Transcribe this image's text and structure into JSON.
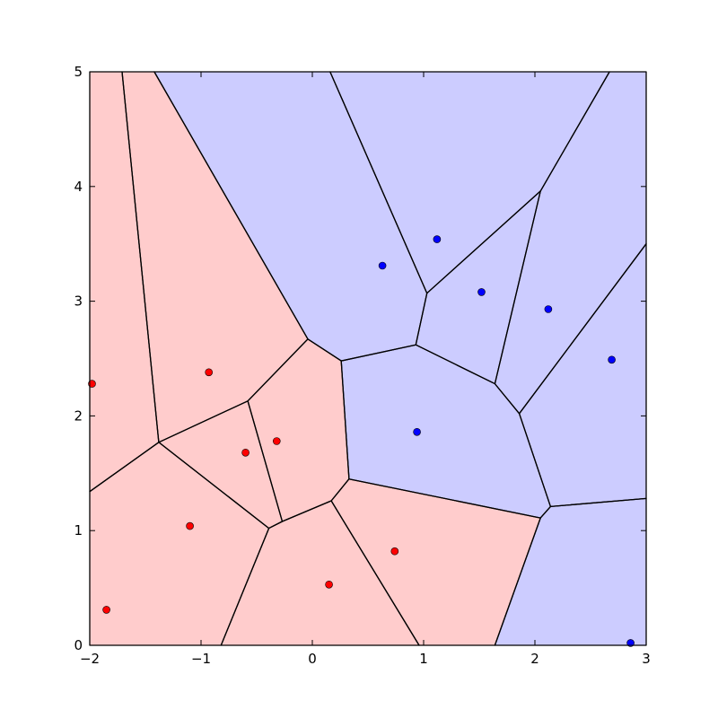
{
  "chart_data": {
    "type": "scatter",
    "title": "",
    "xlabel": "",
    "ylabel": "",
    "xlim": [
      -2,
      3
    ],
    "ylim": [
      0,
      5
    ],
    "xticks": [
      -2,
      -1,
      0,
      1,
      2,
      3
    ],
    "yticks": [
      0,
      1,
      2,
      3,
      4,
      5
    ],
    "grid": false,
    "colors": {
      "red_region": "#ffcccc",
      "blue_region": "#ccccff",
      "red_point": "#ff0000",
      "blue_point": "#0000ff",
      "edge": "#000000"
    },
    "series": [
      {
        "color": "red",
        "points": [
          [
            -1.98,
            2.28
          ],
          [
            -0.93,
            2.38
          ],
          [
            -0.6,
            1.68
          ],
          [
            -0.32,
            1.78
          ],
          [
            -1.1,
            1.04
          ],
          [
            -1.85,
            0.31
          ],
          [
            0.15,
            0.53
          ],
          [
            0.74,
            0.82
          ]
        ]
      },
      {
        "color": "blue",
        "points": [
          [
            0.63,
            3.31
          ],
          [
            1.12,
            3.54
          ],
          [
            1.52,
            3.08
          ],
          [
            2.12,
            2.93
          ],
          [
            2.69,
            2.49
          ],
          [
            0.94,
            1.86
          ],
          [
            2.86,
            0.02
          ]
        ]
      }
    ],
    "regions": [
      {
        "class": "red",
        "vertices": [
          [
            -2,
            5
          ],
          [
            -1.71,
            5
          ],
          [
            -1.38,
            1.77
          ],
          [
            -2,
            1.34
          ]
        ]
      },
      {
        "class": "red",
        "vertices": [
          [
            -1.71,
            5
          ],
          [
            -1.42,
            5
          ],
          [
            -0.04,
            2.67
          ],
          [
            -0.58,
            2.13
          ],
          [
            -1.38,
            1.77
          ]
        ]
      },
      {
        "class": "red",
        "vertices": [
          [
            -2,
            1.34
          ],
          [
            -1.38,
            1.77
          ],
          [
            -0.39,
            1.02
          ],
          [
            -0.82,
            0
          ],
          [
            -2,
            0
          ]
        ]
      },
      {
        "class": "red",
        "vertices": [
          [
            -1.38,
            1.77
          ],
          [
            -0.58,
            2.13
          ],
          [
            -0.27,
            1.08
          ],
          [
            -0.39,
            1.02
          ]
        ]
      },
      {
        "class": "red",
        "vertices": [
          [
            -0.58,
            2.13
          ],
          [
            -0.04,
            2.67
          ],
          [
            0.26,
            2.48
          ],
          [
            0.33,
            1.45
          ],
          [
            0.17,
            1.26
          ],
          [
            -0.27,
            1.08
          ]
        ]
      },
      {
        "class": "red",
        "vertices": [
          [
            -0.39,
            1.02
          ],
          [
            -0.27,
            1.08
          ],
          [
            0.17,
            1.26
          ],
          [
            0.96,
            0
          ],
          [
            -0.82,
            0
          ]
        ]
      },
      {
        "class": "red",
        "vertices": [
          [
            0.17,
            1.26
          ],
          [
            0.33,
            1.45
          ],
          [
            2.05,
            1.11
          ],
          [
            1.64,
            0
          ],
          [
            0.96,
            0
          ]
        ]
      },
      {
        "class": "blue",
        "vertices": [
          [
            -1.42,
            5
          ],
          [
            0.16,
            5
          ],
          [
            1.03,
            3.07
          ],
          [
            0.93,
            2.62
          ],
          [
            0.26,
            2.48
          ],
          [
            -0.04,
            2.67
          ]
        ]
      },
      {
        "class": "blue",
        "vertices": [
          [
            0.16,
            5
          ],
          [
            2.67,
            5
          ],
          [
            2.05,
            3.96
          ],
          [
            1.03,
            3.07
          ]
        ]
      },
      {
        "class": "blue",
        "vertices": [
          [
            1.03,
            3.07
          ],
          [
            2.05,
            3.96
          ],
          [
            1.64,
            2.28
          ],
          [
            0.93,
            2.62
          ]
        ]
      },
      {
        "class": "blue",
        "vertices": [
          [
            2.67,
            5
          ],
          [
            3,
            5
          ],
          [
            3,
            3.5
          ],
          [
            1.86,
            2.02
          ],
          [
            1.64,
            2.28
          ],
          [
            2.05,
            3.96
          ]
        ]
      },
      {
        "class": "blue",
        "vertices": [
          [
            0.26,
            2.48
          ],
          [
            0.93,
            2.62
          ],
          [
            1.64,
            2.28
          ],
          [
            1.86,
            2.02
          ],
          [
            2.14,
            1.21
          ],
          [
            2.05,
            1.11
          ],
          [
            0.33,
            1.45
          ]
        ]
      },
      {
        "class": "blue",
        "vertices": [
          [
            3,
            3.5
          ],
          [
            3,
            1.28
          ],
          [
            2.14,
            1.21
          ],
          [
            1.86,
            2.02
          ]
        ]
      },
      {
        "class": "blue",
        "vertices": [
          [
            2.05,
            1.11
          ],
          [
            2.14,
            1.21
          ],
          [
            3,
            1.28
          ],
          [
            3,
            0
          ],
          [
            1.64,
            0
          ]
        ]
      }
    ]
  }
}
